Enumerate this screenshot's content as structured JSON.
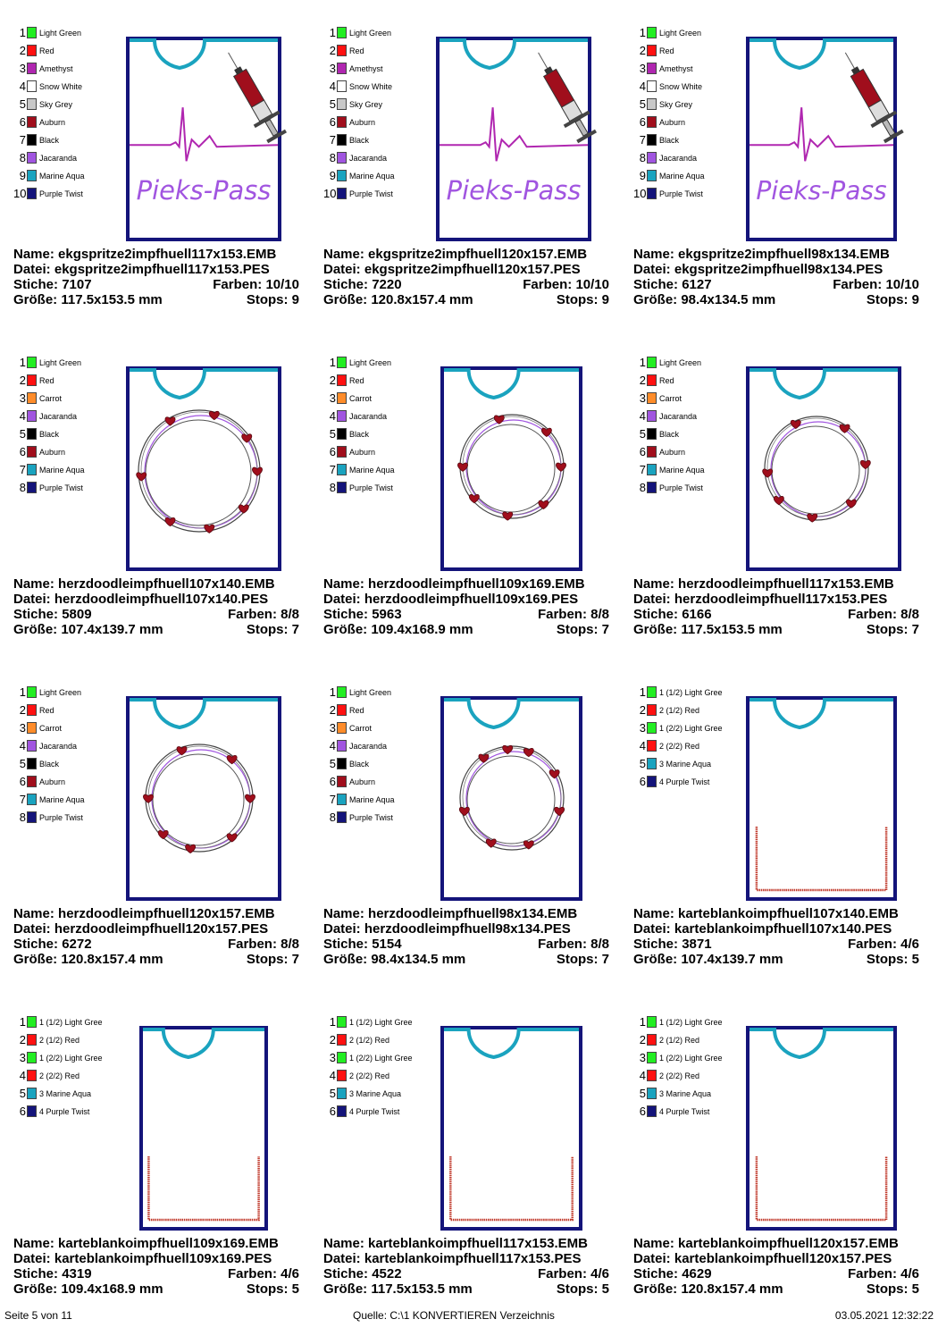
{
  "labels": {
    "name": "Name:",
    "datei": "Datei:",
    "stiche": "Stiche:",
    "farben": "Farben:",
    "groesse": "Größe:",
    "stops": "Stops:"
  },
  "palette": {
    "Light Green": "#22ee22",
    "Red": "#ff1111",
    "Amethyst": "#b027b0",
    "Snow White": "#ffffff",
    "Sky Grey": "#c8c8c8",
    "Auburn": "#a00e1c",
    "Black": "#000000",
    "Jacaranda": "#a155e0",
    "Marine Aqua": "#1aa3bf",
    "Purple Twist": "#14147a",
    "Carrot": "#ff8c2a"
  },
  "designs": [
    {
      "type": "ekg",
      "text": "Pieks-Pass",
      "legend": [
        "Light Green",
        "Red",
        "Amethyst",
        "Snow White",
        "Sky Grey",
        "Auburn",
        "Black",
        "Jacaranda",
        "Marine Aqua",
        "Purple Twist"
      ],
      "name": "ekgspritze2impfhuell117x153.EMB",
      "datei": "ekgspritze2impfhuell117x153.PES",
      "stiche": "7107",
      "farben": "10/10",
      "groesse": "117.5x153.5 mm",
      "stops": "9"
    },
    {
      "type": "ekg",
      "text": "Pieks-Pass",
      "legend": [
        "Light Green",
        "Red",
        "Amethyst",
        "Snow White",
        "Sky Grey",
        "Auburn",
        "Black",
        "Jacaranda",
        "Marine Aqua",
        "Purple Twist"
      ],
      "name": "ekgspritze2impfhuell120x157.EMB",
      "datei": "ekgspritze2impfhuell120x157.PES",
      "stiche": "7220",
      "farben": "10/10",
      "groesse": "120.8x157.4 mm",
      "stops": "9"
    },
    {
      "type": "ekg",
      "text": "Pieks-Pass",
      "legend": [
        "Light Green",
        "Red",
        "Amethyst",
        "Snow White",
        "Sky Grey",
        "Auburn",
        "Black",
        "Jacaranda",
        "Marine Aqua",
        "Purple Twist"
      ],
      "name": "ekgspritze2impfhuell98x134.EMB",
      "datei": "ekgspritze2impfhuell98x134.PES",
      "stiche": "6127",
      "farben": "10/10",
      "groesse": "98.4x134.5 mm",
      "stops": "9"
    },
    {
      "type": "heart",
      "legend": [
        "Light Green",
        "Red",
        "Carrot",
        "Jacaranda",
        "Black",
        "Auburn",
        "Marine Aqua",
        "Purple Twist"
      ],
      "name": "herzdoodleimpfhuell107x140.EMB",
      "datei": "herzdoodleimpfhuell107x140.PES",
      "stiche": "5809",
      "farben": "8/8",
      "groesse": "107.4x139.7 mm",
      "stops": "7"
    },
    {
      "type": "heart",
      "legend": [
        "Light Green",
        "Red",
        "Carrot",
        "Jacaranda",
        "Black",
        "Auburn",
        "Marine Aqua",
        "Purple Twist"
      ],
      "name": "herzdoodleimpfhuell109x169.EMB",
      "datei": "herzdoodleimpfhuell109x169.PES",
      "stiche": "5963",
      "farben": "8/8",
      "groesse": "109.4x168.9 mm",
      "stops": "7"
    },
    {
      "type": "heart",
      "legend": [
        "Light Green",
        "Red",
        "Carrot",
        "Jacaranda",
        "Black",
        "Auburn",
        "Marine Aqua",
        "Purple Twist"
      ],
      "name": "herzdoodleimpfhuell117x153.EMB",
      "datei": "herzdoodleimpfhuell117x153.PES",
      "stiche": "6166",
      "farben": "8/8",
      "groesse": "117.5x153.5 mm",
      "stops": "7"
    },
    {
      "type": "heart",
      "legend": [
        "Light Green",
        "Red",
        "Carrot",
        "Jacaranda",
        "Black",
        "Auburn",
        "Marine Aqua",
        "Purple Twist"
      ],
      "name": "herzdoodleimpfhuell120x157.EMB",
      "datei": "herzdoodleimpfhuell120x157.PES",
      "stiche": "6272",
      "farben": "8/8",
      "groesse": "120.8x157.4 mm",
      "stops": "7"
    },
    {
      "type": "heart",
      "legend": [
        "Light Green",
        "Red",
        "Carrot",
        "Jacaranda",
        "Black",
        "Auburn",
        "Marine Aqua",
        "Purple Twist"
      ],
      "name": "herzdoodleimpfhuell98x134.EMB",
      "datei": "herzdoodleimpfhuell98x134.PES",
      "stiche": "5154",
      "farben": "8/8",
      "groesse": "98.4x134.5 mm",
      "stops": "7"
    },
    {
      "type": "blank",
      "legend": [
        "1 (1/2) Light Gree",
        "2 (1/2) Red",
        "1 (2/2) Light Gree",
        "2 (2/2) Red",
        "3 Marine Aqua",
        "4 Purple Twist"
      ],
      "legendColors": [
        "Light Green",
        "Red",
        "Light Green",
        "Red",
        "Marine Aqua",
        "Purple Twist"
      ],
      "name": "karteblankoimpfhuell107x140.EMB",
      "datei": "karteblankoimpfhuell107x140.PES",
      "stiche": "3871",
      "farben": "4/6",
      "groesse": "107.4x139.7 mm",
      "stops": "5"
    },
    {
      "type": "blank",
      "legend": [
        "1 (1/2) Light Gree",
        "2 (1/2) Red",
        "1 (2/2) Light Gree",
        "2 (2/2) Red",
        "3 Marine Aqua",
        "4 Purple Twist"
      ],
      "legendColors": [
        "Light Green",
        "Red",
        "Light Green",
        "Red",
        "Marine Aqua",
        "Purple Twist"
      ],
      "name": "karteblankoimpfhuell109x169.EMB",
      "datei": "karteblankoimpfhuell109x169.PES",
      "stiche": "4319",
      "farben": "4/6",
      "groesse": "109.4x168.9 mm",
      "stops": "5"
    },
    {
      "type": "blank",
      "legend": [
        "1 (1/2) Light Gree",
        "2 (1/2) Red",
        "1 (2/2) Light Gree",
        "2 (2/2) Red",
        "3 Marine Aqua",
        "4 Purple Twist"
      ],
      "legendColors": [
        "Light Green",
        "Red",
        "Light Green",
        "Red",
        "Marine Aqua",
        "Purple Twist"
      ],
      "name": "karteblankoimpfhuell117x153.EMB",
      "datei": "karteblankoimpfhuell117x153.PES",
      "stiche": "4522",
      "farben": "4/6",
      "groesse": "117.5x153.5 mm",
      "stops": "5"
    },
    {
      "type": "blank",
      "legend": [
        "1 (1/2) Light Gree",
        "2 (1/2) Red",
        "1 (2/2) Light Gree",
        "2 (2/2) Red",
        "3 Marine Aqua",
        "4 Purple Twist"
      ],
      "legendColors": [
        "Light Green",
        "Red",
        "Light Green",
        "Red",
        "Marine Aqua",
        "Purple Twist"
      ],
      "name": "karteblankoimpfhuell120x157.EMB",
      "datei": "karteblankoimpfhuell120x157.PES",
      "stiche": "4629",
      "farben": "4/6",
      "groesse": "120.8x157.4 mm",
      "stops": "5"
    }
  ],
  "footer": {
    "page": "Seite 5 von 11",
    "source": "Quelle: C:\\1 KONVERTIEREN Verzeichnis",
    "datetime": "03.05.2021 12:32:22"
  }
}
